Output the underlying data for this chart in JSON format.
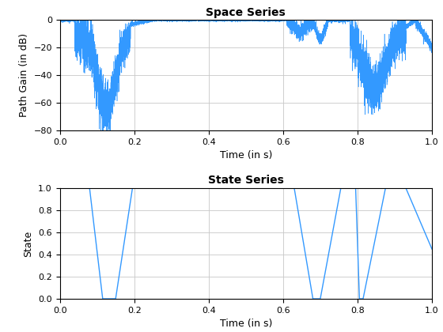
{
  "title1": "Space Series",
  "title2": "State Series",
  "xlabel1": "Time (in s)",
  "xlabel2": "Time (in s)",
  "ylabel1": "Path Gain (in dB)",
  "ylabel2": "State",
  "xlim": [
    0,
    1
  ],
  "ylim1": [
    -80,
    0
  ],
  "ylim2": [
    0,
    1
  ],
  "xticks": [
    0,
    0.2,
    0.4,
    0.6,
    0.8,
    1.0
  ],
  "yticks1": [
    -80,
    -60,
    -40,
    -20,
    0
  ],
  "yticks2": [
    0,
    0.2,
    0.4,
    0.6,
    0.8,
    1.0
  ],
  "line_color": "#3399FF",
  "background_color": "#ffffff",
  "grid_color": "#c8c8c8",
  "seed": 42,
  "n_samples": 10000,
  "state_points": [
    [
      0.0,
      1.0
    ],
    [
      0.08,
      1.0
    ],
    [
      0.115,
      0.0
    ],
    [
      0.15,
      0.0
    ],
    [
      0.195,
      1.0
    ],
    [
      0.63,
      1.0
    ],
    [
      0.68,
      0.0
    ],
    [
      0.7,
      0.0
    ],
    [
      0.755,
      1.0
    ],
    [
      0.795,
      1.0
    ],
    [
      0.805,
      0.0
    ],
    [
      0.815,
      0.0
    ],
    [
      0.875,
      1.0
    ],
    [
      0.93,
      1.0
    ],
    [
      1.0,
      0.45
    ]
  ]
}
